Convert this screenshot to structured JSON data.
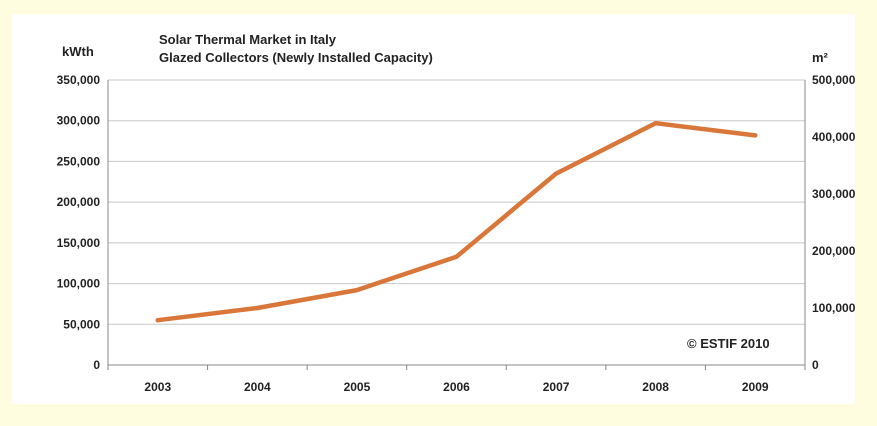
{
  "chart_data": {
    "type": "line",
    "title": "Solar Thermal Market in Italy",
    "subtitle": "Glazed Collectors (Newly Installed Capacity)",
    "ylabel_left": "kWth",
    "ylabel_right": "m²",
    "categories": [
      "2003",
      "2004",
      "2005",
      "2006",
      "2007",
      "2008",
      "2009"
    ],
    "values": [
      55000,
      70000,
      92000,
      133000,
      235000,
      297000,
      282000
    ],
    "ylim_left": [
      0,
      350000
    ],
    "yticks_left": [
      "0",
      "50,000",
      "100,000",
      "150,000",
      "200,000",
      "250,000",
      "300,000",
      "350,000"
    ],
    "ylim_right": [
      0,
      500000
    ],
    "yticks_right": [
      "0",
      "100,000",
      "200,000",
      "300,000",
      "400,000",
      "500,000"
    ],
    "grid": true,
    "line_color": "#d9773a",
    "annotation": "© ESTIF 2010"
  }
}
